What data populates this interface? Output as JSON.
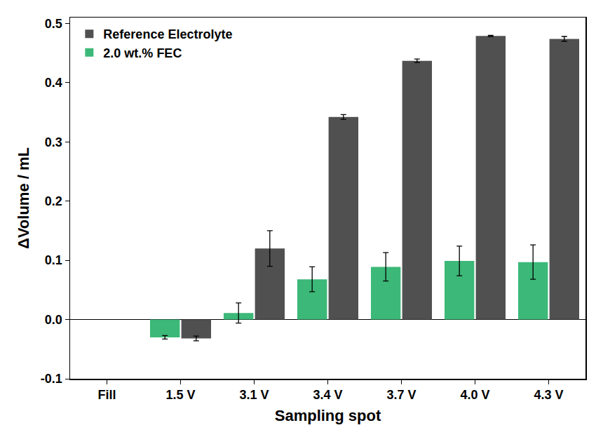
{
  "chart_data": {
    "type": "bar",
    "x_label": "Sampling spot",
    "y_label": "ΔVolume / mL",
    "categories": [
      "Fill",
      "1.5 V",
      "3.1 V",
      "3.4 V",
      "3.7 V",
      "4.0 V",
      "4.3 V"
    ],
    "series": [
      {
        "name": "2.0 wt.% FEC",
        "color": "#3cb878",
        "values": [
          null,
          -0.03,
          0.011,
          0.068,
          0.089,
          0.099,
          0.097
        ],
        "errors": [
          null,
          0.003,
          0.017,
          0.021,
          0.024,
          0.025,
          0.029
        ]
      },
      {
        "name": "Reference Electrolyte",
        "color": "#505050",
        "values": [
          null,
          -0.032,
          0.12,
          0.342,
          0.437,
          0.479,
          0.474
        ],
        "errors": [
          null,
          0.004,
          0.03,
          0.004,
          0.003,
          0.001,
          0.004
        ]
      }
    ],
    "ylim": [
      -0.1,
      0.51
    ],
    "yticks": [
      -0.1,
      {
        "value": 0,
        "label": "0.0"
      },
      0.1,
      0.2,
      0.3,
      0.4,
      0.5
    ],
    "grid": false,
    "legend": "upper left"
  }
}
